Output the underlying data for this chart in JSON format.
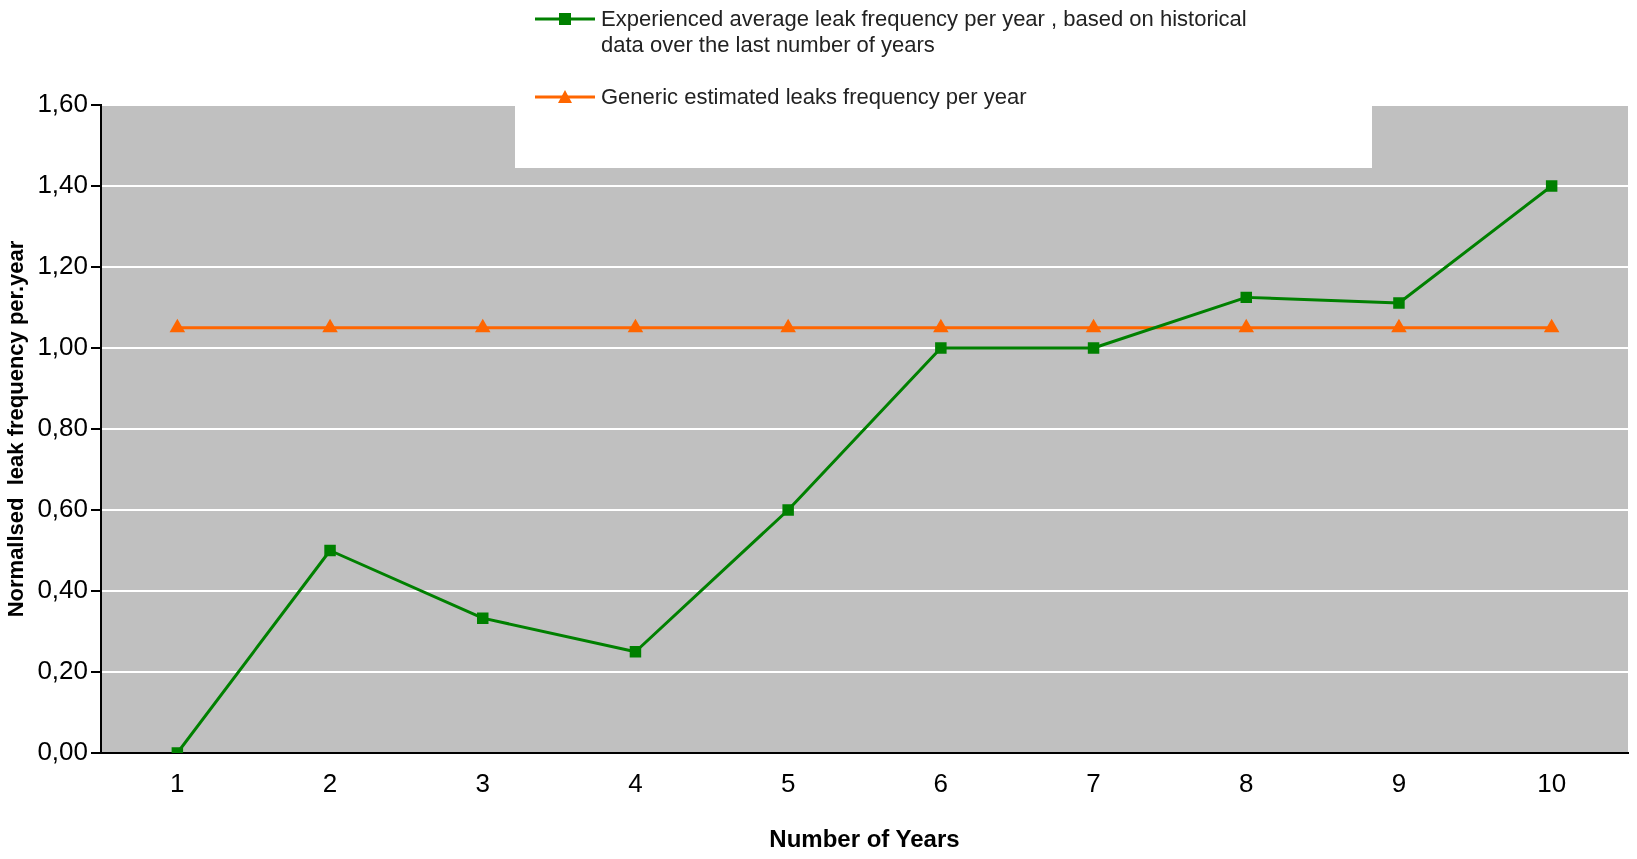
{
  "chart_data": {
    "type": "line",
    "xlabel": "Number of Years",
    "ylabel": "Normallsed  leak frequency per.year",
    "categories": [
      "1",
      "2",
      "3",
      "4",
      "5",
      "6",
      "7",
      "8",
      "9",
      "10"
    ],
    "series": [
      {
        "name": "Experienced average leak frequency per year , based on historical data over  the last  number of years",
        "color": "#008000",
        "marker": "square",
        "values": [
          0,
          0.5,
          0.333,
          0.25,
          0.6,
          1.0,
          1.0,
          1.125,
          1.111,
          1.4
        ]
      },
      {
        "name": "Generic estimated leaks frequency per year",
        "color": "#ff6600",
        "marker": "triangle",
        "values": [
          1.05,
          1.05,
          1.05,
          1.05,
          1.05,
          1.05,
          1.05,
          1.05,
          1.05,
          1.05
        ]
      }
    ],
    "ylim": [
      0,
      1.6
    ],
    "yticks": [
      {
        "value": 0,
        "label": "0,00"
      },
      {
        "value": 0.2,
        "label": "0,20"
      },
      {
        "value": 0.4,
        "label": "0,40"
      },
      {
        "value": 0.6,
        "label": "0,60"
      },
      {
        "value": 0.8,
        "label": "0,80"
      },
      {
        "value": 1,
        "label": "1,00"
      },
      {
        "value": 1.2,
        "label": "1,20"
      },
      {
        "value": 1.4,
        "label": "1,40"
      },
      {
        "value": 1.6,
        "label": "1,60"
      }
    ],
    "grid": "y",
    "legend": "top",
    "line_style": "solid"
  }
}
